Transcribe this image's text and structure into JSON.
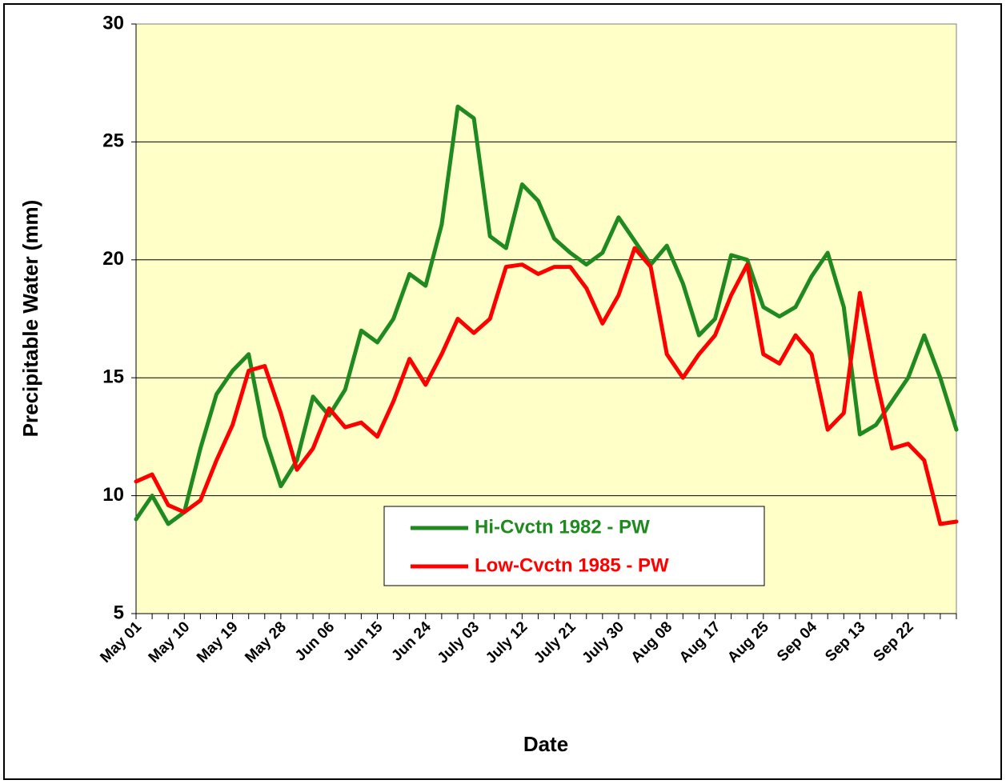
{
  "chart_data": {
    "type": "line",
    "x_label": "Date",
    "y_label": "Precipitable Water (mm)",
    "categories": [
      "May 01",
      null,
      null,
      "May 10",
      null,
      null,
      "May 19",
      null,
      null,
      "May 28",
      null,
      null,
      "Jun 06",
      null,
      null,
      "Jun 15",
      null,
      null,
      "Jun 24",
      null,
      null,
      "July 03",
      null,
      null,
      "July 12",
      null,
      null,
      "July 21",
      null,
      null,
      "July 30",
      null,
      null,
      "Aug 08",
      null,
      null,
      "Aug 17",
      null,
      null,
      "Aug 25",
      null,
      null,
      "Sep 04",
      null,
      null,
      "Sep 13",
      null,
      null,
      "Sep 22",
      null,
      null,
      null
    ],
    "series": [
      {
        "name": "Hi-Cvctn 1982 - PW",
        "color": "#1f8a1f",
        "values": [
          9.0,
          10.0,
          8.8,
          9.3,
          12.0,
          14.3,
          15.3,
          16.0,
          12.5,
          10.4,
          11.5,
          14.2,
          13.4,
          14.5,
          17.0,
          16.5,
          17.5,
          19.4,
          18.9,
          21.5,
          26.5,
          26.0,
          21.0,
          20.5,
          23.2,
          22.5,
          20.9,
          20.3,
          19.8,
          20.3,
          21.8,
          20.8,
          19.8,
          20.6,
          19.0,
          16.8,
          17.5,
          20.2,
          20.0,
          18.0,
          17.6,
          18.0,
          19.3,
          20.3,
          18.0,
          12.6,
          13.0,
          14.0,
          15.0,
          16.8,
          15.0,
          12.8
        ]
      },
      {
        "name": "Low-Cvctn 1985 - PW",
        "color": "#ff0000",
        "values": [
          10.6,
          10.9,
          9.6,
          9.3,
          9.8,
          11.5,
          13.0,
          15.3,
          15.5,
          13.5,
          11.1,
          12.0,
          13.7,
          12.9,
          13.1,
          12.5,
          14.0,
          15.8,
          14.7,
          16.0,
          17.5,
          16.9,
          17.5,
          19.7,
          19.8,
          19.4,
          19.7,
          19.7,
          18.8,
          17.3,
          18.5,
          20.5,
          19.7,
          16.0,
          15.0,
          16.0,
          16.8,
          18.5,
          19.8,
          16.0,
          15.6,
          16.8,
          16.0,
          12.8,
          13.5,
          18.6,
          15.0,
          12.0,
          12.2,
          11.5,
          8.8,
          8.9
        ]
      }
    ],
    "ylim": [
      5,
      30
    ],
    "yticks": [
      5,
      10,
      15,
      20,
      25,
      30
    ],
    "grid": true,
    "legend": "bottom-center"
  }
}
